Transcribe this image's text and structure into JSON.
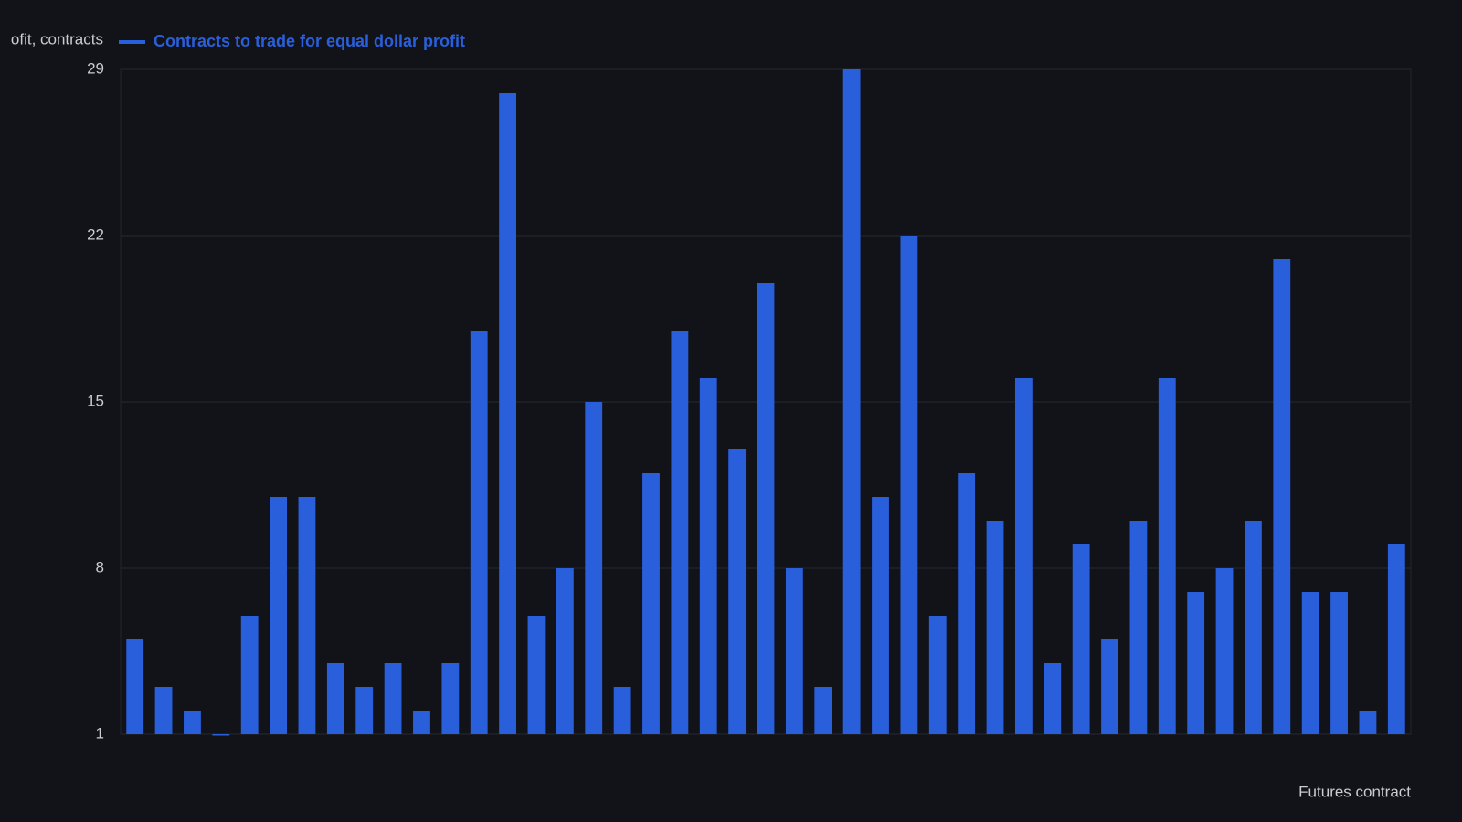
{
  "chart_data": {
    "type": "bar",
    "y_label": "ofit, contracts",
    "x_label": "Futures contract",
    "series": [
      {
        "name": "Contracts to trade for equal dollar profit",
        "color": "#2a5fdc",
        "values": [
          5,
          3,
          2,
          1,
          6,
          11,
          11,
          4,
          3,
          4,
          2,
          4,
          18,
          28,
          6,
          8,
          15,
          3,
          12,
          18,
          16,
          13,
          20,
          8,
          3,
          29,
          11,
          22,
          6,
          12,
          10,
          16,
          4,
          9,
          5,
          10,
          16,
          7,
          8,
          10,
          21,
          7,
          7,
          2,
          9
        ]
      }
    ],
    "categories": [
      null,
      null,
      null,
      null,
      null,
      null,
      null,
      null,
      null,
      null,
      null,
      null,
      null,
      null,
      null,
      null,
      null,
      null,
      null,
      null,
      null,
      null,
      null,
      null,
      null,
      null,
      null,
      null,
      null,
      null,
      null,
      null,
      null,
      null,
      null,
      null,
      null,
      null,
      null,
      null,
      null,
      null,
      null,
      null,
      null
    ],
    "ylim": [
      1,
      29
    ],
    "yticks": [
      1,
      8,
      15,
      22,
      29
    ],
    "grid": true
  }
}
